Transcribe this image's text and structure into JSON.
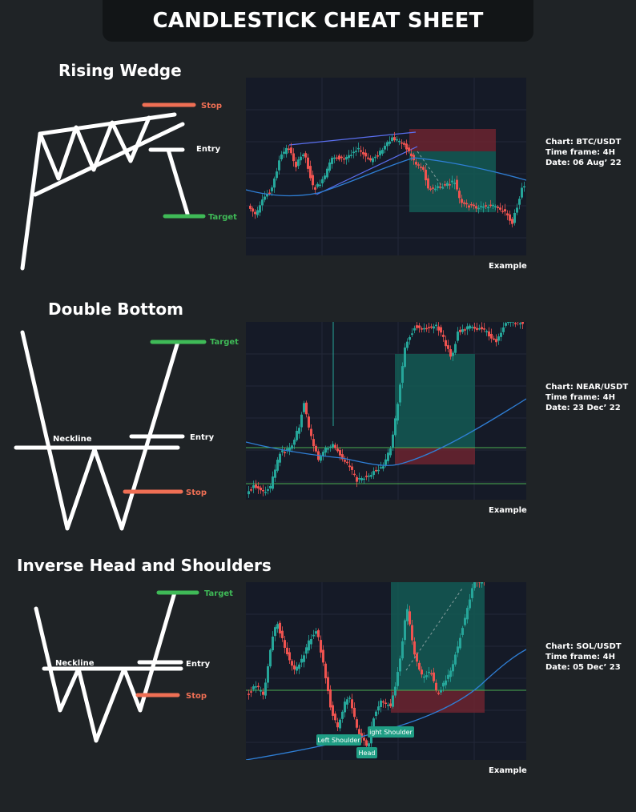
{
  "header": {
    "title": "CANDLESTICK CHEAT SHEET"
  },
  "colors": {
    "background": "#1f2326",
    "stop": "#ef6f54",
    "target": "#3fba57",
    "bull": "#26a69a",
    "bear": "#ef5350",
    "ma": "#2f7fd6"
  },
  "sections": [
    {
      "title": "Rising Wedge",
      "labels": {
        "stop": "Stop",
        "entry": "Entry",
        "target": "Target"
      },
      "info": {
        "chart": "Chart: BTC/USDT",
        "timeframe": "Time frame: 4H",
        "date": "Date: 06 Aug’ 22"
      },
      "example": "Example"
    },
    {
      "title": "Double Bottom",
      "labels": {
        "target": "Target",
        "neckline": "Neckline",
        "entry": "Entry",
        "stop": "Stop"
      },
      "info": {
        "chart": "Chart: NEAR/USDT",
        "timeframe": "Time frame: 4H",
        "date": "Date: 23 Dec’ 22"
      },
      "example": "Example"
    },
    {
      "title": "Inverse Head and Shoulders",
      "labels": {
        "target": "Target",
        "neckline": "Neckline",
        "entry": "Entry",
        "stop": "Stop"
      },
      "chart_tags": {
        "left_shoulder": "Left Shoulder",
        "head": "Head",
        "right_shoulder": "ight Shoulder"
      },
      "info": {
        "chart": "Chart: SOL/USDT",
        "timeframe": "Time frame: 4H",
        "date": "Date: 05 Dec’ 23"
      },
      "example": "Example"
    }
  ]
}
